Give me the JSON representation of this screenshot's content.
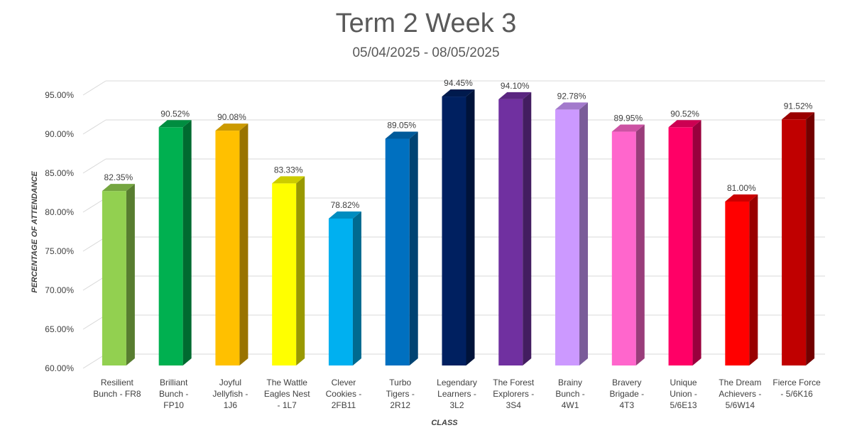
{
  "chart_data": {
    "type": "bar",
    "title": "Term 2 Week 3",
    "subtitle": "05/04/2025 - 08/05/2025",
    "xlabel": "CLASS",
    "ylabel": "PERCENTAGE OF ATTENDANCE",
    "ylim": [
      60,
      95
    ],
    "yticks": [
      "60.00%",
      "65.00%",
      "70.00%",
      "75.00%",
      "80.00%",
      "85.00%",
      "90.00%",
      "95.00%"
    ],
    "ytick_values": [
      60,
      65,
      70,
      75,
      80,
      85,
      90,
      95
    ],
    "grid": true,
    "categories": [
      [
        "Resilient",
        "Bunch - FR8"
      ],
      [
        "Brilliant",
        "Bunch -",
        "FP10"
      ],
      [
        "Joyful",
        "Jellyfish -",
        "1J6"
      ],
      [
        "The Wattle",
        "Eagles Nest",
        "- 1L7"
      ],
      [
        "Clever",
        "Cookies -",
        "2FB11"
      ],
      [
        "Turbo",
        "Tigers -",
        "2R12"
      ],
      [
        "Legendary",
        "Learners -",
        "3L2"
      ],
      [
        "The Forest",
        "Explorers -",
        "3S4"
      ],
      [
        "Brainy",
        "Bunch -",
        "4W1"
      ],
      [
        "Bravery",
        "Brigade -",
        "4T3"
      ],
      [
        "Unique",
        "Union -",
        "5/6E13"
      ],
      [
        "The Dream",
        "Achievers -",
        "5/6W14"
      ],
      [
        "Fierce Force",
        "- 5/6K16"
      ]
    ],
    "values": [
      82.35,
      90.52,
      90.08,
      83.33,
      78.82,
      89.05,
      94.45,
      94.1,
      92.78,
      89.95,
      90.52,
      81.0,
      91.52
    ],
    "data_labels": [
      "82.35%",
      "90.52%",
      "90.08%",
      "83.33%",
      "78.82%",
      "89.05%",
      "94.45%",
      "94.10%",
      "92.78%",
      "89.95%",
      "90.52%",
      "81.00%",
      "91.52%"
    ],
    "colors": [
      "#92D050",
      "#00B050",
      "#FFC000",
      "#FFFF00",
      "#00B0F0",
      "#0070C0",
      "#002060",
      "#7030A0",
      "#CC99FF",
      "#FF66CC",
      "#FF0066",
      "#FF0000",
      "#C00000"
    ]
  }
}
